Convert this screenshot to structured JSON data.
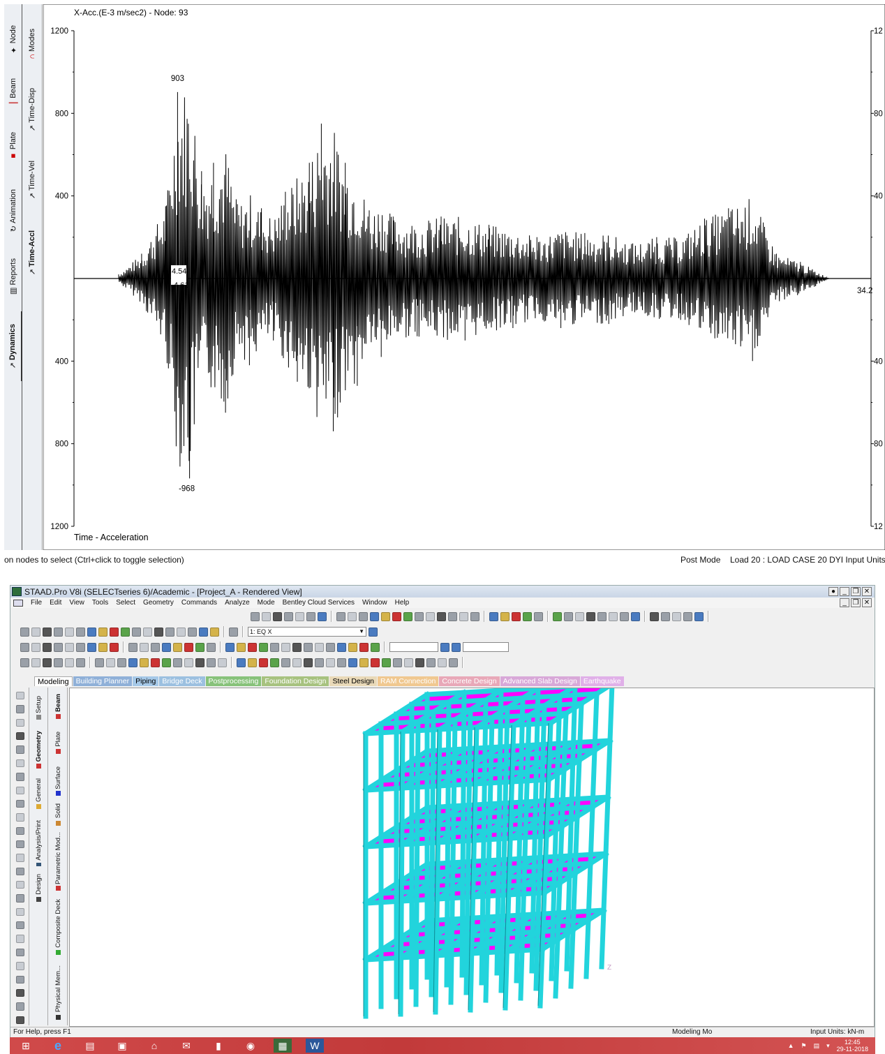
{
  "top": {
    "left_tabs_col1": [
      {
        "label": "Node",
        "icon": "node-icon"
      },
      {
        "label": "Beam",
        "icon": "beam-icon"
      },
      {
        "label": "Plate",
        "icon": "plate-icon"
      },
      {
        "label": "Animation",
        "icon": "animation-icon"
      },
      {
        "label": "Reports",
        "icon": "reports-icon"
      },
      {
        "label": "Dynamics",
        "icon": "dynamics-icon"
      }
    ],
    "left_tabs_col2": [
      {
        "label": "Modes",
        "icon": "modes-icon"
      },
      {
        "label": "Time-Disp",
        "icon": "time-disp-icon"
      },
      {
        "label": "Time-Vel",
        "icon": "time-vel-icon"
      },
      {
        "label": "Time-Accl",
        "icon": "time-accl-icon"
      }
    ],
    "status_left": "on nodes to select (Ctrl+click to toggle selection)",
    "status_mode": "Post Mode",
    "status_right": "Load 20 : LOAD CASE 20 DYI Input Units: kN"
  },
  "chart_data": {
    "type": "line",
    "title": "X-Acc.(E-3 m/sec2) - Node: 93",
    "xlabel": "Time - Acceleration",
    "ylabel": "",
    "y_ticks_left": [
      "1200",
      "800",
      "400",
      "400",
      "800",
      "1200"
    ],
    "y_ticks_right": [
      "12",
      "80",
      "40",
      "40",
      "80",
      "12"
    ],
    "ylim": [
      -1200,
      1200
    ],
    "xlim": [
      4.54,
      34.2
    ],
    "x_start_labels": [
      "4.54",
      "4.61"
    ],
    "x_end_label": "34.2",
    "max_label": "903",
    "min_label": "-968",
    "series": [
      {
        "x": [
          4.54,
          5.5,
          6.5,
          7.0,
          7.5,
          8.0,
          8.5,
          9.0,
          9.5,
          10.0,
          10.5,
          11.0,
          11.5,
          12.0,
          12.5,
          13.0,
          13.5,
          14.0,
          14.5,
          15.0,
          15.5,
          16.0,
          17.0,
          18.0,
          19.0,
          20.0,
          21.0,
          22.0,
          23.0,
          24.0,
          25.0,
          26.0,
          27.0,
          28.0,
          29.0,
          30.0,
          31.0,
          32.0,
          33.0,
          34.2
        ],
        "y": [
          20,
          120,
          350,
          903,
          -968,
          520,
          560,
          -650,
          360,
          -420,
          340,
          -300,
          420,
          -500,
          560,
          750,
          -740,
          560,
          -520,
          330,
          -380,
          300,
          -280,
          300,
          -300,
          260,
          -240,
          200,
          -240,
          220,
          -220,
          170,
          200,
          -200,
          290,
          340,
          -400,
          120,
          80,
          0
        ]
      }
    ]
  },
  "staad": {
    "title": "STAAD.Pro V8i (SELECTseries 6)/Academic - [Project_A - Rendered View]",
    "menu": [
      "File",
      "Edit",
      "View",
      "Tools",
      "Select",
      "Geometry",
      "Commands",
      "Analyze",
      "Mode",
      "Bentley Cloud Services",
      "Window",
      "Help"
    ],
    "load_combo": "1: EQ X",
    "ribbon_tabs": [
      {
        "label": "Modeling",
        "color": "#000000",
        "bg": "#ffffff"
      },
      {
        "label": "Building Planner",
        "color": "#ffffff",
        "bg": "#8fb0d8"
      },
      {
        "label": "Piping",
        "color": "#000000",
        "bg": "#a6c9e8"
      },
      {
        "label": "Bridge Deck",
        "color": "#ffffff",
        "bg": "#9cc0e0"
      },
      {
        "label": "Postprocessing",
        "color": "#ffffff",
        "bg": "#87c27a"
      },
      {
        "label": "Foundation Design",
        "color": "#ffffff",
        "bg": "#a7c27f"
      },
      {
        "label": "Steel Design",
        "color": "#000000",
        "bg": "#e9d9b8"
      },
      {
        "label": "RAM Connection",
        "color": "#ffffff",
        "bg": "#f0c890"
      },
      {
        "label": "Concrete Design",
        "color": "#ffffff",
        "bg": "#e8a8b8"
      },
      {
        "label": "Advanced Slab Design",
        "color": "#ffffff",
        "bg": "#d8a8d8"
      },
      {
        "label": "Earthquake",
        "color": "#ffffff",
        "bg": "#e0b0e8"
      }
    ],
    "page_tabs_col1": [
      "Setup",
      "Geometry",
      "General",
      "Analysis/Print",
      "Design"
    ],
    "page_tabs_col2": [
      "Beam",
      "Plate",
      "Surface",
      "Solid",
      "Parametric Mod...",
      "Composite Deck",
      "Physical Mem..."
    ],
    "axis_label": "Z",
    "status_left": "For Help, press F1",
    "status_mode": "Modeling Mo",
    "status_units": "Input Units: kN-m",
    "colors": {
      "frame": "#22d4dc",
      "slab": "#ff00ff"
    }
  },
  "taskbar": {
    "icons": [
      "windows-start-icon",
      "internet-explorer-icon",
      "file-explorer-icon",
      "store-icon",
      "home-icon",
      "mail-icon",
      "app-icon",
      "chrome-icon",
      "staad-icon",
      "word-icon"
    ],
    "time": "12:45",
    "date": "29-11-2018"
  }
}
